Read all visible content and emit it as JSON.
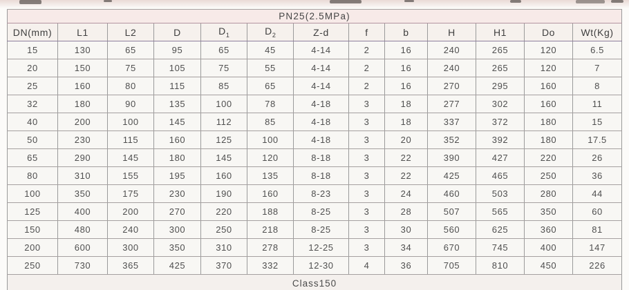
{
  "document": {
    "table": {
      "title": "PN25(2.5MPa)",
      "columns": [
        {
          "key": "dn-mm",
          "text": "DN(mm)"
        },
        {
          "key": "l1",
          "text": "L1"
        },
        {
          "key": "l2",
          "text": "L2"
        },
        {
          "key": "d",
          "text": "D"
        },
        {
          "key": "d1",
          "text": "D",
          "sub": "1"
        },
        {
          "key": "d2",
          "text": "D",
          "sub": "2"
        },
        {
          "key": "z-d",
          "text": "Z-d"
        },
        {
          "key": "f",
          "text": "f"
        },
        {
          "key": "b",
          "text": "b"
        },
        {
          "key": "h",
          "text": "H"
        },
        {
          "key": "h1",
          "text": "H1"
        },
        {
          "key": "do",
          "text": "Do"
        },
        {
          "key": "wt-kg",
          "text": "Wt(Kg)"
        }
      ],
      "rows": [
        [
          "15",
          "130",
          "65",
          "95",
          "65",
          "45",
          "4-14",
          "2",
          "16",
          "240",
          "265",
          "120",
          "6.5"
        ],
        [
          "20",
          "150",
          "75",
          "105",
          "75",
          "55",
          "4-14",
          "2",
          "16",
          "240",
          "265",
          "120",
          "7"
        ],
        [
          "25",
          "160",
          "80",
          "115",
          "85",
          "65",
          "4-14",
          "2",
          "16",
          "270",
          "295",
          "160",
          "8"
        ],
        [
          "32",
          "180",
          "90",
          "135",
          "100",
          "78",
          "4-18",
          "3",
          "18",
          "277",
          "302",
          "160",
          "11"
        ],
        [
          "40",
          "200",
          "100",
          "145",
          "112",
          "85",
          "4-18",
          "3",
          "18",
          "337",
          "372",
          "180",
          "15"
        ],
        [
          "50",
          "230",
          "115",
          "160",
          "125",
          "100",
          "4-18",
          "3",
          "20",
          "352",
          "392",
          "180",
          "17.5"
        ],
        [
          "65",
          "290",
          "145",
          "180",
          "145",
          "120",
          "8-18",
          "3",
          "22",
          "390",
          "427",
          "220",
          "26"
        ],
        [
          "80",
          "310",
          "155",
          "195",
          "160",
          "135",
          "8-18",
          "3",
          "22",
          "425",
          "465",
          "250",
          "36"
        ],
        [
          "100",
          "350",
          "175",
          "230",
          "190",
          "160",
          "8-23",
          "3",
          "24",
          "460",
          "503",
          "280",
          "44"
        ],
        [
          "125",
          "400",
          "200",
          "270",
          "220",
          "188",
          "8-25",
          "3",
          "28",
          "507",
          "565",
          "350",
          "60"
        ],
        [
          "150",
          "480",
          "240",
          "300",
          "250",
          "218",
          "8-25",
          "3",
          "30",
          "560",
          "625",
          "360",
          "81"
        ],
        [
          "200",
          "600",
          "300",
          "350",
          "310",
          "278",
          "12-25",
          "3",
          "34",
          "670",
          "745",
          "400",
          "147"
        ],
        [
          "250",
          "730",
          "365",
          "425",
          "370",
          "332",
          "12-30",
          "4",
          "36",
          "705",
          "810",
          "450",
          "226"
        ]
      ],
      "next_table_title": "Class150"
    },
    "colors": {
      "title_row_bg": "#f7eae8",
      "header_row_bg": "#f6f1ed",
      "cell_bg": "#f8f7f4",
      "outer_border": "#5f5f5f",
      "grid_border": "#9a9a9a",
      "header_separator_purple": "#8e7f9e",
      "title_separator_pink": "#b394a0",
      "text": "#4f4f4f"
    }
  }
}
